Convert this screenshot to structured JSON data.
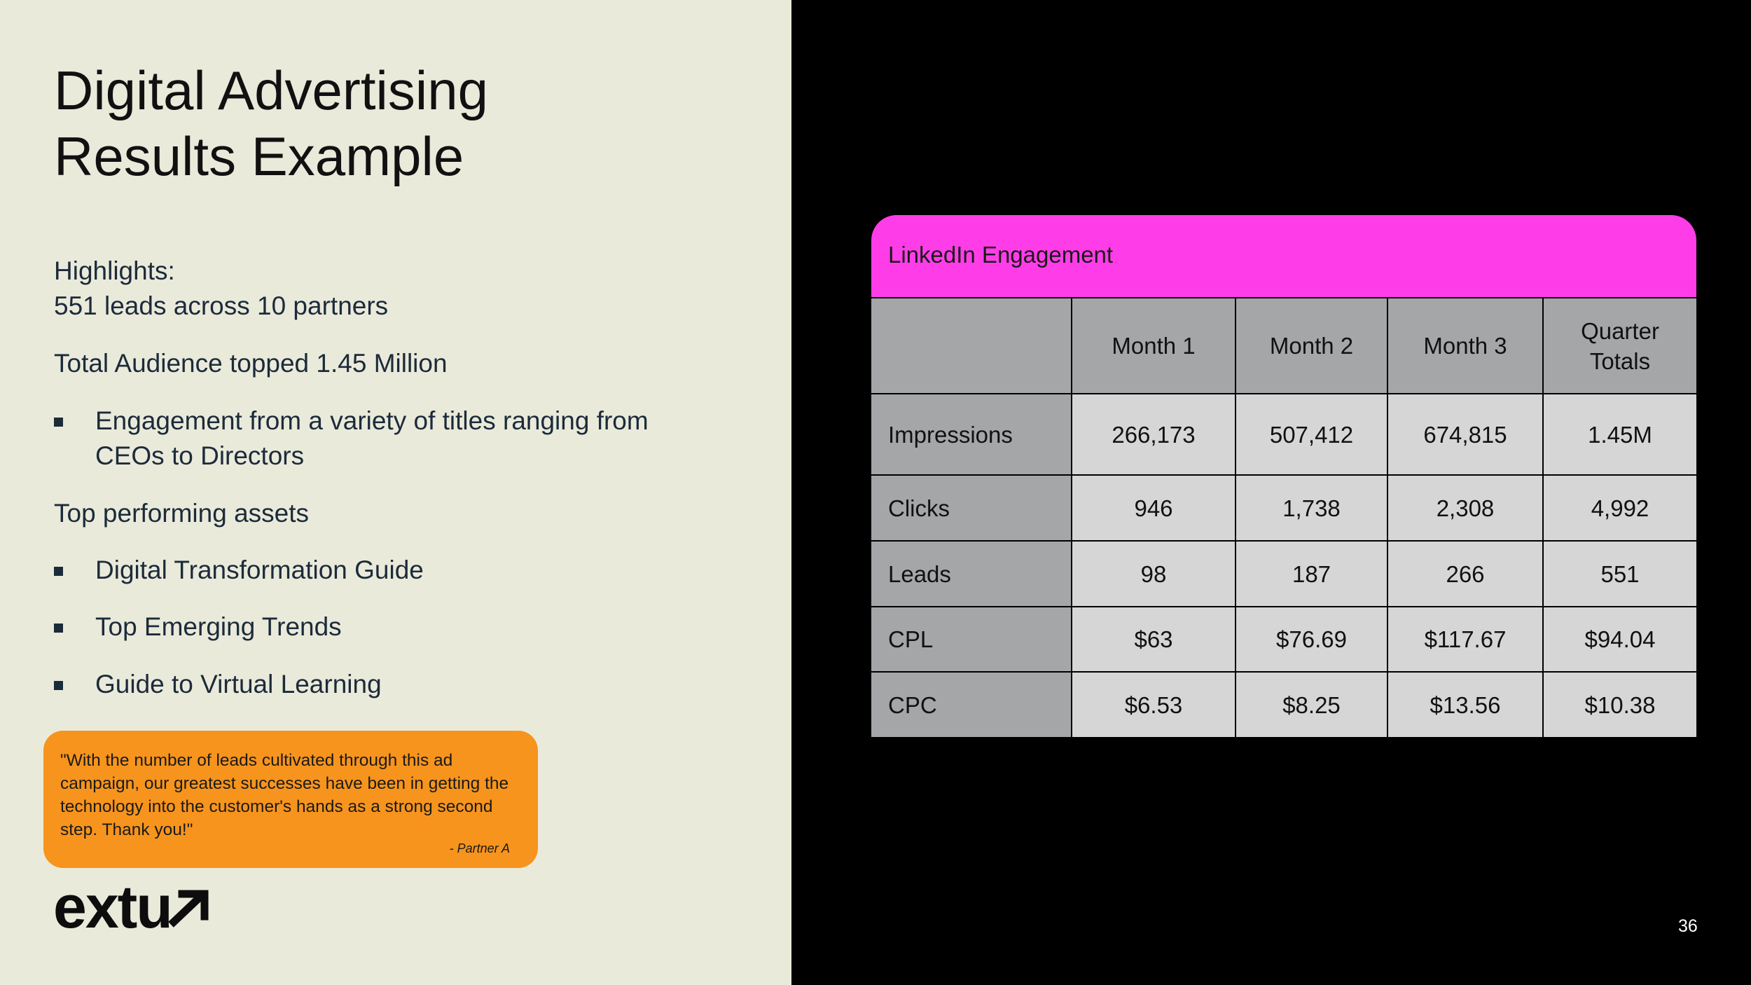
{
  "slide": {
    "title_line1": "Digital Advertising",
    "title_line2": "Results Example",
    "page_number": "36"
  },
  "highlights": {
    "heading": "Highlights:",
    "leads_line": "551 leads across 10 partners",
    "audience_line": "Total Audience topped 1.45 Million",
    "engagement_bullet_line1": "Engagement from a variety of titles ranging from",
    "engagement_bullet_line2": "CEOs to Directors",
    "assets_heading": "Top performing assets",
    "assets": [
      "Digital Transformation Guide",
      "Top Emerging Trends",
      "Guide to Virtual Learning"
    ]
  },
  "quote": {
    "text": "\"With the number of leads cultivated through this ad campaign, our greatest successes have been in getting the technology into the customer's hands as a strong second step. Thank you!\"",
    "attribution": "- Partner A"
  },
  "logo": {
    "text": "extu",
    "icon": "arrow-up-right-icon"
  },
  "table": {
    "title": "LinkedIn Engagement",
    "columns": [
      "",
      "Month 1",
      "Month 2",
      "Month 3",
      "Quarter Totals"
    ],
    "rows": [
      {
        "label": "Impressions",
        "values": [
          "266,173",
          "507,412",
          "674,815",
          "1.45M"
        ]
      },
      {
        "label": "Clicks",
        "values": [
          "946",
          "1,738",
          "2,308",
          "4,992"
        ]
      },
      {
        "label": "Leads",
        "values": [
          "98",
          "187",
          "266",
          "551"
        ]
      },
      {
        "label": "CPL",
        "values": [
          "$63",
          "$76.69",
          "$117.67",
          "$94.04"
        ]
      },
      {
        "label": "CPC",
        "values": [
          "$6.53",
          "$8.25",
          "$13.56",
          "$10.38"
        ]
      }
    ]
  },
  "colors": {
    "left_background": "#eaeadb",
    "right_background": "#000000",
    "table_header": "#ff3de8",
    "quote_background": "#f7941d",
    "header_cell": "#a5a6a8",
    "data_cell": "#d6d6d6"
  }
}
